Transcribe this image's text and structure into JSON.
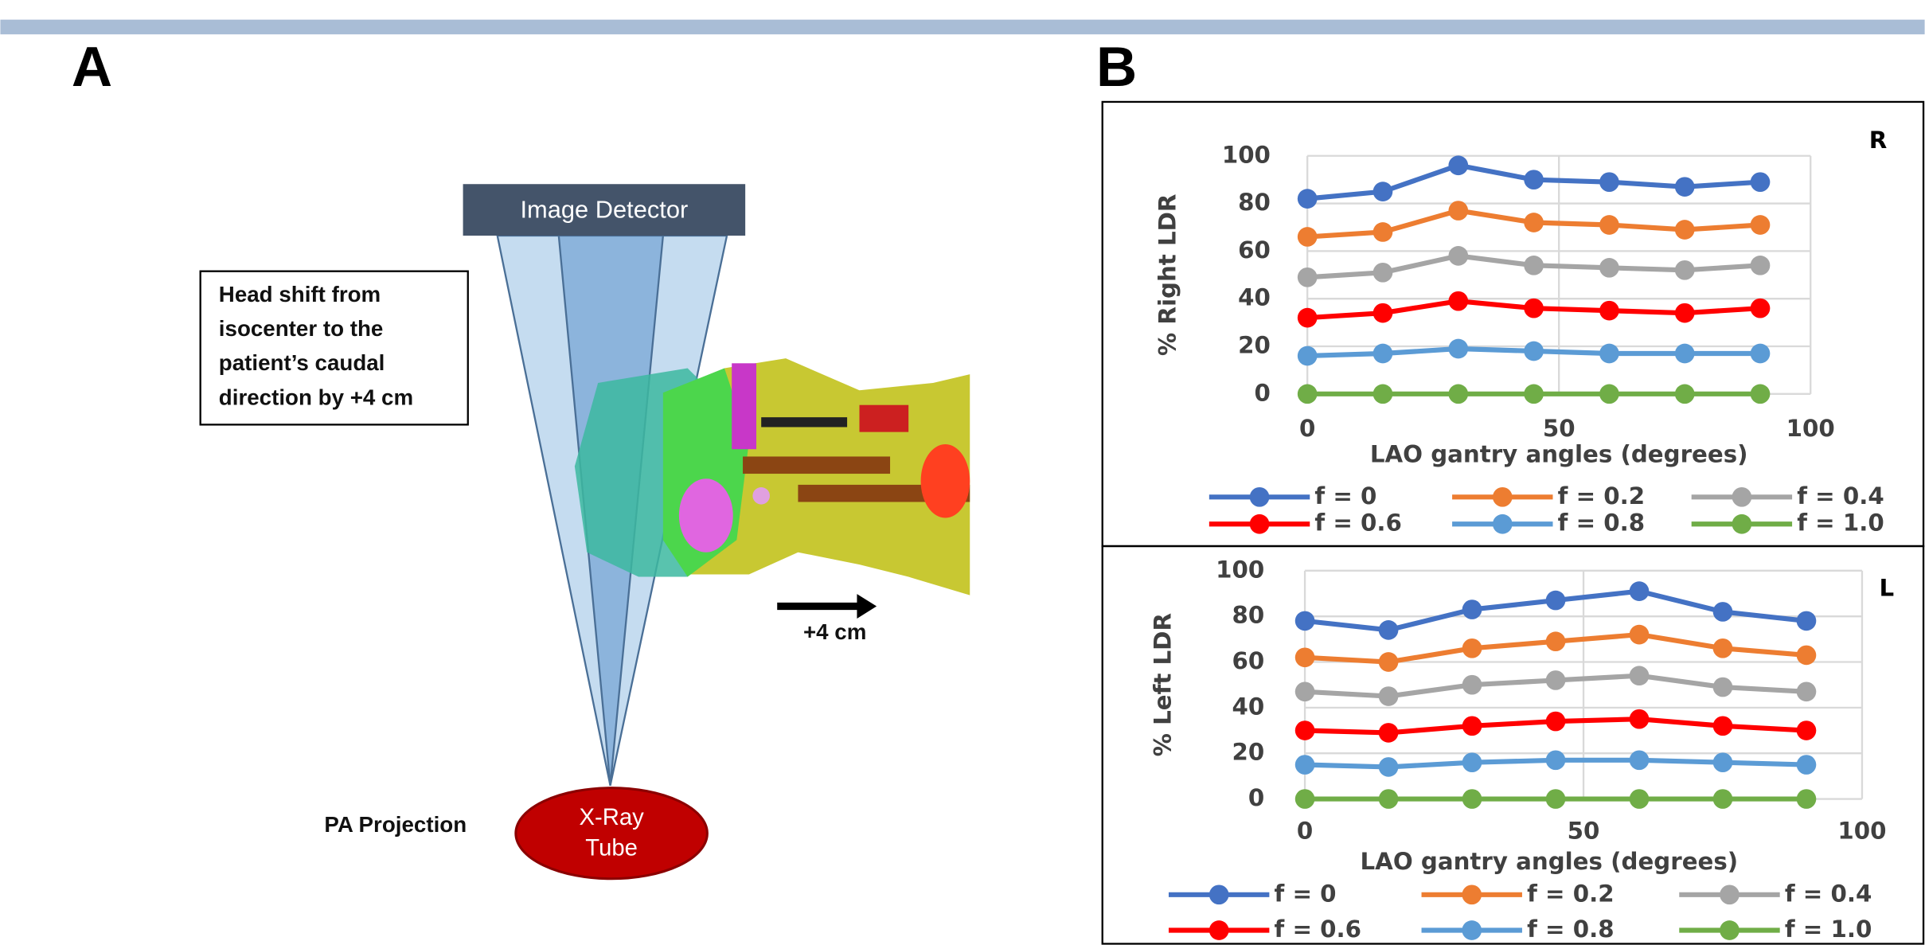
{
  "panels": {
    "A": "A",
    "B": "B"
  },
  "diagram": {
    "detector": "Image Detector",
    "note": [
      "Head shift from",
      "isocenter to the",
      "patient’s caudal",
      "direction by +4 cm"
    ],
    "arrow_label": "+4 cm",
    "projection": "PA Projection",
    "tube": [
      "X-Ray",
      "Tube"
    ]
  },
  "chart_data": [
    {
      "type": "line",
      "annotation": "R",
      "y_label": "% Right LDR",
      "x_label": "LAO gantry angles (degrees)",
      "x": [
        0,
        15,
        30,
        45,
        60,
        75,
        90
      ],
      "xlim": [
        0,
        100
      ],
      "xticks": [
        0,
        50,
        100
      ],
      "ylim": [
        0,
        100
      ],
      "yticks": [
        0,
        20,
        40,
        60,
        80,
        100
      ],
      "grid": true,
      "legend": "bottom",
      "series": [
        {
          "name": "f = 0",
          "color": "#4472c4",
          "values": [
            82,
            85,
            96,
            90,
            89,
            87,
            89
          ]
        },
        {
          "name": "f = 0.2",
          "color": "#ed7d31",
          "values": [
            66,
            68,
            77,
            72,
            71,
            69,
            71
          ]
        },
        {
          "name": "f = 0.4",
          "color": "#a5a5a5",
          "values": [
            49,
            51,
            58,
            54,
            53,
            52,
            54
          ]
        },
        {
          "name": "f = 0.6",
          "color": "#ff0000",
          "values": [
            32,
            34,
            39,
            36,
            35,
            34,
            36
          ]
        },
        {
          "name": "f = 0.8",
          "color": "#5b9bd5",
          "values": [
            16,
            17,
            19,
            18,
            17,
            17,
            17
          ]
        },
        {
          "name": "f = 1.0",
          "color": "#70ad47",
          "values": [
            0,
            0,
            0,
            0,
            0,
            0,
            0
          ]
        }
      ]
    },
    {
      "type": "line",
      "annotation": "L",
      "y_label": "% Left LDR",
      "x_label": "LAO gantry angles (degrees)",
      "x": [
        0,
        15,
        30,
        45,
        60,
        75,
        90
      ],
      "xlim": [
        0,
        100
      ],
      "xticks": [
        0,
        50,
        100
      ],
      "ylim": [
        0,
        100
      ],
      "yticks": [
        0,
        20,
        40,
        60,
        80,
        100
      ],
      "grid": true,
      "legend": "bottom",
      "series": [
        {
          "name": "f = 0",
          "color": "#4472c4",
          "values": [
            78,
            74,
            83,
            87,
            91,
            82,
            78
          ]
        },
        {
          "name": "f = 0.2",
          "color": "#ed7d31",
          "values": [
            62,
            60,
            66,
            69,
            72,
            66,
            63
          ]
        },
        {
          "name": "f = 0.4",
          "color": "#a5a5a5",
          "values": [
            47,
            45,
            50,
            52,
            54,
            49,
            47
          ]
        },
        {
          "name": "f = 0.6",
          "color": "#ff0000",
          "values": [
            30,
            29,
            32,
            34,
            35,
            32,
            30
          ]
        },
        {
          "name": "f = 0.8",
          "color": "#5b9bd5",
          "values": [
            15,
            14,
            16,
            17,
            17,
            16,
            15
          ]
        },
        {
          "name": "f = 1.0",
          "color": "#70ad47",
          "values": [
            0,
            0,
            0,
            0,
            0,
            0,
            0
          ]
        }
      ]
    }
  ]
}
